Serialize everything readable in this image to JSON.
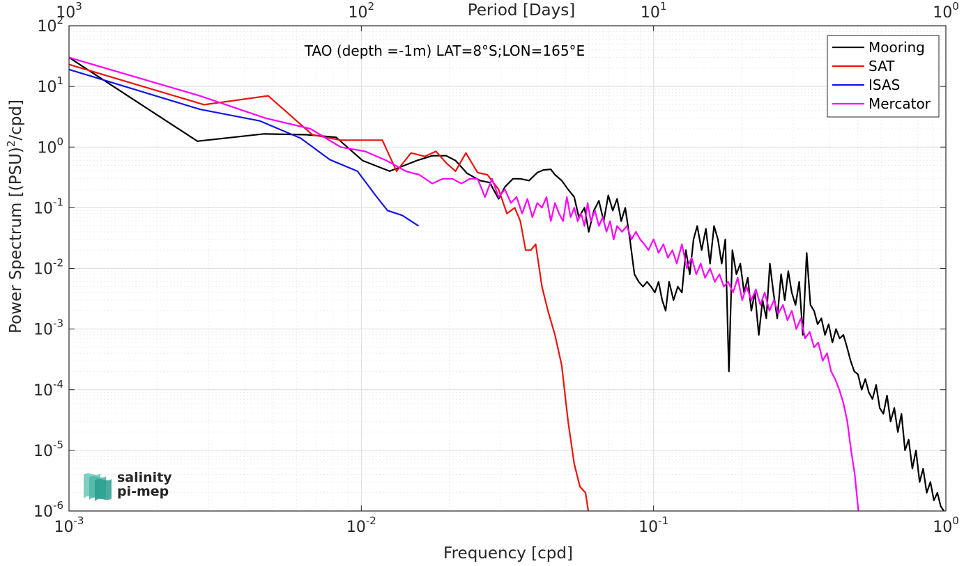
{
  "chart_data": {
    "type": "line",
    "title": "",
    "annotation": "TAO (depth =-1m) LAT=8°S;LON=165°E",
    "xlabel": "Frequency [cpd]",
    "ylabel_pre": "Power Spectrum [(PSU)",
    "ylabel_sup": "2",
    "ylabel_post": "/cpd]",
    "top_xlabel": "Period [Days]",
    "x_scale": "log",
    "y_scale": "log",
    "xlim": [
      0.001,
      1
    ],
    "ylim": [
      1e-06,
      100
    ],
    "grid": true,
    "legend_position": "top-right",
    "x_ticks": [
      {
        "value": 0.001,
        "base": "10",
        "exp": "-3"
      },
      {
        "value": 0.01,
        "base": "10",
        "exp": "-2"
      },
      {
        "value": 0.1,
        "base": "10",
        "exp": "-1"
      },
      {
        "value": 1,
        "base": "10",
        "exp": "0"
      }
    ],
    "top_ticks": [
      {
        "value": 0.001,
        "base": "10",
        "exp": "3"
      },
      {
        "value": 0.01,
        "base": "10",
        "exp": "2"
      },
      {
        "value": 0.1,
        "base": "10",
        "exp": "1"
      },
      {
        "value": 1,
        "base": "10",
        "exp": "0"
      }
    ],
    "y_ticks": [
      {
        "value": 1e-06,
        "base": "10",
        "exp": "-6"
      },
      {
        "value": 1e-05,
        "base": "10",
        "exp": "-5"
      },
      {
        "value": 0.0001,
        "base": "10",
        "exp": "-4"
      },
      {
        "value": 0.001,
        "base": "10",
        "exp": "-3"
      },
      {
        "value": 0.01,
        "base": "10",
        "exp": "-2"
      },
      {
        "value": 0.1,
        "base": "10",
        "exp": "-1"
      },
      {
        "value": 1,
        "base": "10",
        "exp": "0"
      },
      {
        "value": 10,
        "base": "10",
        "exp": "1"
      },
      {
        "value": 100,
        "base": "10",
        "exp": "2"
      }
    ],
    "series": [
      {
        "name": "Mooring",
        "color": "#000000",
        "x": [
          0.001,
          0.00275,
          0.00465,
          0.0065,
          0.0082,
          0.0101,
          0.0125,
          0.0155,
          0.0175,
          0.0195,
          0.021,
          0.023,
          0.0255,
          0.0275,
          0.0295,
          0.031,
          0.033,
          0.035,
          0.0375,
          0.04,
          0.042,
          0.0445,
          0.046,
          0.0485,
          0.051,
          0.0535,
          0.0555,
          0.058,
          0.06,
          0.0625,
          0.065,
          0.0675,
          0.07,
          0.0725,
          0.075,
          0.0775,
          0.08,
          0.083,
          0.086,
          0.089,
          0.092,
          0.095,
          0.098,
          0.101,
          0.104,
          0.107,
          0.11,
          0.113,
          0.117,
          0.121,
          0.125,
          0.129,
          0.133,
          0.137,
          0.141,
          0.146,
          0.151,
          0.156,
          0.161,
          0.166,
          0.171,
          0.176,
          0.181,
          0.186,
          0.192,
          0.198,
          0.204,
          0.21,
          0.216,
          0.222,
          0.229,
          0.236,
          0.243,
          0.25,
          0.257,
          0.265,
          0.273,
          0.281,
          0.289,
          0.297,
          0.306,
          0.315,
          0.324,
          0.334,
          0.344,
          0.354,
          0.364,
          0.375,
          0.386,
          0.397,
          0.409,
          0.421,
          0.433,
          0.446,
          0.459,
          0.472,
          0.486,
          0.5,
          0.515,
          0.53,
          0.545,
          0.561,
          0.577,
          0.594,
          0.611,
          0.629,
          0.647,
          0.666,
          0.685,
          0.705,
          0.725,
          0.746,
          0.768,
          0.79,
          0.813,
          0.836,
          0.86,
          0.885,
          0.91,
          0.935,
          0.96,
          0.985
        ],
        "y": [
          30,
          1.25,
          1.65,
          1.6,
          1.45,
          0.6,
          0.4,
          0.6,
          0.72,
          0.72,
          0.6,
          0.37,
          0.28,
          0.26,
          0.14,
          0.22,
          0.3,
          0.3,
          0.28,
          0.38,
          0.42,
          0.43,
          0.35,
          0.28,
          0.2,
          0.15,
          0.07,
          0.1,
          0.04,
          0.09,
          0.13,
          0.06,
          0.16,
          0.09,
          0.14,
          0.06,
          0.1,
          0.03,
          0.008,
          0.006,
          0.005,
          0.006,
          0.005,
          0.004,
          0.006,
          0.003,
          0.002,
          0.006,
          0.003,
          0.005,
          0.004,
          0.02,
          0.008,
          0.03,
          0.05,
          0.02,
          0.045,
          0.012,
          0.05,
          0.03,
          0.012,
          0.03,
          0.0002,
          0.02,
          0.008,
          0.012,
          0.004,
          0.007,
          0.002,
          0.004,
          0.0008,
          0.003,
          0.0015,
          0.012,
          0.004,
          0.0015,
          0.008,
          0.003,
          0.009,
          0.004,
          0.0025,
          0.006,
          0.0008,
          0.018,
          0.0025,
          0.002,
          0.0012,
          0.0015,
          0.0008,
          0.0012,
          0.0006,
          0.001,
          0.0007,
          0.0008,
          0.0005,
          0.0003,
          0.0002,
          0.00018,
          0.0001,
          0.00015,
          9e-05,
          7e-05,
          0.00012,
          5e-05,
          4e-05,
          8e-05,
          3e-05,
          5e-05,
          2e-05,
          4e-05,
          1e-05,
          1.5e-05,
          5e-06,
          1e-05,
          3e-06,
          5e-06,
          2e-06,
          3e-06,
          1.5e-06,
          2e-06,
          1.2e-06,
          1e-06
        ]
      },
      {
        "name": "SAT",
        "color": "#e8140f",
        "x": [
          0.001,
          0.0029,
          0.0048,
          0.0068,
          0.0085,
          0.0102,
          0.0118,
          0.0132,
          0.0148,
          0.0165,
          0.018,
          0.0195,
          0.021,
          0.0228,
          0.025,
          0.027,
          0.0295,
          0.0315,
          0.0335,
          0.035,
          0.0365,
          0.038,
          0.0395,
          0.0415,
          0.0435,
          0.046,
          0.0485,
          0.051,
          0.0535,
          0.056,
          0.0585,
          0.06
        ],
        "y": [
          23,
          5,
          7,
          1.6,
          1.3,
          1.3,
          1.3,
          0.4,
          0.8,
          0.7,
          0.85,
          0.55,
          0.4,
          0.8,
          0.38,
          0.35,
          0.2,
          0.08,
          0.1,
          0.06,
          0.02,
          0.02,
          0.025,
          0.005,
          0.002,
          0.0008,
          0.00025,
          3e-05,
          6e-06,
          2.5e-06,
          2e-06,
          9e-07
        ]
      },
      {
        "name": "ISAS",
        "color": "#1414e6",
        "x": [
          0.001,
          0.0028,
          0.0045,
          0.0062,
          0.0078,
          0.0097,
          0.0113,
          0.0123,
          0.0138,
          0.0157
        ],
        "y": [
          19,
          4.2,
          2.7,
          1.4,
          0.62,
          0.4,
          0.15,
          0.09,
          0.075,
          0.05
        ]
      },
      {
        "name": "Mercator",
        "color": "#ff00ff",
        "x": [
          0.001,
          0.0028,
          0.0047,
          0.0067,
          0.0085,
          0.0103,
          0.0122,
          0.0142,
          0.0158,
          0.0175,
          0.019,
          0.0205,
          0.022,
          0.0235,
          0.025,
          0.0265,
          0.028,
          0.0295,
          0.031,
          0.0325,
          0.034,
          0.0355,
          0.037,
          0.0385,
          0.04,
          0.0415,
          0.043,
          0.0445,
          0.046,
          0.0475,
          0.049,
          0.0505,
          0.052,
          0.0535,
          0.055,
          0.0565,
          0.058,
          0.0595,
          0.061,
          0.063,
          0.065,
          0.067,
          0.069,
          0.071,
          0.073,
          0.075,
          0.078,
          0.081,
          0.084,
          0.087,
          0.09,
          0.093,
          0.096,
          0.1,
          0.104,
          0.108,
          0.112,
          0.116,
          0.12,
          0.125,
          0.13,
          0.135,
          0.14,
          0.145,
          0.15,
          0.156,
          0.162,
          0.168,
          0.174,
          0.18,
          0.187,
          0.194,
          0.201,
          0.208,
          0.216,
          0.224,
          0.232,
          0.24,
          0.249,
          0.258,
          0.267,
          0.277,
          0.287,
          0.297,
          0.308,
          0.319,
          0.33,
          0.342,
          0.354,
          0.366,
          0.379,
          0.392,
          0.405,
          0.418,
          0.432,
          0.446,
          0.46,
          0.474,
          0.488,
          0.502
        ],
        "y": [
          30,
          7,
          3,
          2,
          1,
          0.85,
          0.6,
          0.4,
          0.35,
          0.25,
          0.3,
          0.3,
          0.25,
          0.3,
          0.3,
          0.15,
          0.3,
          0.15,
          0.2,
          0.12,
          0.15,
          0.08,
          0.14,
          0.07,
          0.12,
          0.1,
          0.15,
          0.06,
          0.12,
          0.08,
          0.06,
          0.15,
          0.07,
          0.1,
          0.06,
          0.08,
          0.05,
          0.12,
          0.06,
          0.09,
          0.05,
          0.07,
          0.04,
          0.06,
          0.03,
          0.05,
          0.04,
          0.05,
          0.03,
          0.04,
          0.03,
          0.025,
          0.02,
          0.03,
          0.018,
          0.025,
          0.015,
          0.02,
          0.012,
          0.025,
          0.01,
          0.015,
          0.008,
          0.012,
          0.007,
          0.01,
          0.006,
          0.008,
          0.005,
          0.006,
          0.004,
          0.007,
          0.003,
          0.005,
          0.003,
          0.0045,
          0.0025,
          0.004,
          0.002,
          0.003,
          0.0018,
          0.0025,
          0.0014,
          0.002,
          0.001,
          0.0015,
          0.0007,
          0.0009,
          0.0005,
          0.0006,
          0.0003,
          0.0004,
          0.0002,
          0.00015,
          0.0001,
          6e-05,
          3e-05,
          1e-05,
          4e-06,
          1e-06
        ]
      }
    ]
  },
  "logo": {
    "line1": "salinity",
    "line2": "pi-mep",
    "color": "#2a9d8f"
  }
}
